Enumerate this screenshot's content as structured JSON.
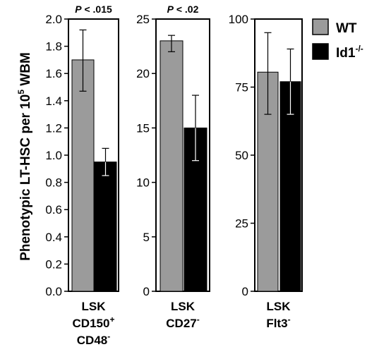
{
  "colors": {
    "wt": "#9b9b9b",
    "ko": "#000000",
    "frame": "#000000",
    "whisker_wt": "#000000",
    "whisker_ko": "#ffffff"
  },
  "chart_data": {
    "type": "bar",
    "ylabel": "Phenotypic LT-HSC per 10",
    "ylabel_sup": "5",
    "ylabel_tail": " WBM",
    "legend": {
      "placement": "top-right",
      "entries": [
        {
          "name": "WT",
          "color_key": "wt"
        },
        {
          "name": "Id1",
          "sup": "-/-",
          "color_key": "ko"
        }
      ]
    },
    "panels": [
      {
        "pvalue_prefix": "P",
        "pvalue_rest": " < .015",
        "ylim": [
          0,
          2.0
        ],
        "ticks": [
          0.0,
          0.2,
          0.4,
          0.6,
          0.8,
          1.0,
          1.2,
          1.4,
          1.6,
          1.8,
          2.0
        ],
        "tick_labels": [
          "0.0",
          "0.2",
          "0.4",
          "0.6",
          "0.8",
          "1.0",
          "1.2",
          "1.4",
          "1.6",
          "1.8",
          "2.0"
        ],
        "category_lines": [
          {
            "text": "LSK",
            "sup": ""
          },
          {
            "text": "CD150",
            "sup": "+"
          },
          {
            "text": "CD48",
            "sup": "-"
          }
        ],
        "series": [
          {
            "name": "WT",
            "value": 1.7,
            "err_high": 1.92,
            "err_low": 1.47
          },
          {
            "name": "Id1-/-",
            "value": 0.95,
            "err_high": 1.05,
            "err_low": 0.85
          }
        ]
      },
      {
        "pvalue_prefix": "P",
        "pvalue_rest": " < .02",
        "ylim": [
          0,
          25
        ],
        "ticks": [
          0,
          5,
          10,
          15,
          20,
          25
        ],
        "tick_labels": [
          "0",
          "5",
          "10",
          "15",
          "20",
          "25"
        ],
        "category_lines": [
          {
            "text": "LSK",
            "sup": ""
          },
          {
            "text": "CD27",
            "sup": "-"
          }
        ],
        "series": [
          {
            "name": "WT",
            "value": 23.0,
            "err_high": 23.5,
            "err_low": 22.0
          },
          {
            "name": "Id1-/-",
            "value": 15.0,
            "err_high": 18.0,
            "err_low": 12.0
          }
        ]
      },
      {
        "pvalue_prefix": "",
        "pvalue_rest": "",
        "ylim": [
          0,
          100
        ],
        "ticks": [
          0,
          25,
          50,
          75,
          100
        ],
        "tick_labels": [
          "0",
          "25",
          "50",
          "75",
          "100"
        ],
        "category_lines": [
          {
            "text": "LSK",
            "sup": ""
          },
          {
            "text": "Flt3",
            "sup": "-"
          }
        ],
        "series": [
          {
            "name": "WT",
            "value": 80.5,
            "err_high": 95.0,
            "err_low": 65.0
          },
          {
            "name": "Id1-/-",
            "value": 77.0,
            "err_high": 89.0,
            "err_low": 65.0
          }
        ]
      }
    ]
  }
}
